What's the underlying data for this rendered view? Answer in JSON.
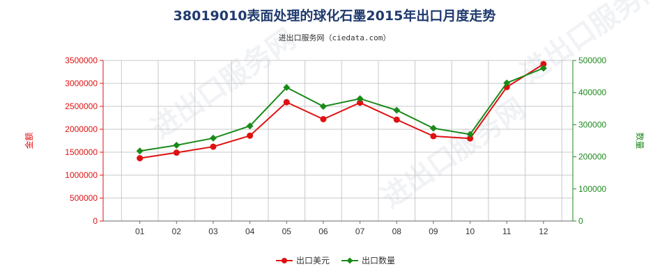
{
  "title": "38019010表面处理的球化石墨2015年出口月度走势",
  "subtitle": "进出口服务网（ciedata.com）",
  "watermark": "进出口服务网",
  "colors": {
    "left_axis": "#e01010",
    "right_axis": "#1a8a1a",
    "series_value": "#e01010",
    "series_qty": "#1a8a1a",
    "grid": "#c8c8c8",
    "title": "#1f3a6e"
  },
  "chart_data": {
    "type": "line",
    "categories": [
      "01",
      "02",
      "03",
      "04",
      "05",
      "06",
      "07",
      "08",
      "09",
      "10",
      "11",
      "12"
    ],
    "y_left": {
      "label": "金额",
      "range": [
        0,
        3500000
      ],
      "ticks": [
        0,
        500000,
        1000000,
        1500000,
        2000000,
        2500000,
        3000000,
        3500000
      ],
      "tick_labels": [
        "0",
        "500000",
        "1000000",
        "1500000",
        "2000000",
        "2500000",
        "3000000",
        "3500000"
      ]
    },
    "y_right": {
      "label": "数量",
      "range": [
        0,
        500000
      ],
      "ticks": [
        0,
        100000,
        200000,
        300000,
        400000,
        500000
      ],
      "tick_labels": [
        "0",
        "100000",
        "200000",
        "300000",
        "400000",
        "500000"
      ]
    },
    "grid": true,
    "legend_position": "bottom-center",
    "series": [
      {
        "name": "出口美元",
        "axis": "left",
        "marker": "circle",
        "values": [
          1370000,
          1490000,
          1620000,
          1860000,
          2590000,
          2220000,
          2580000,
          2210000,
          1850000,
          1800000,
          2920000,
          3420000
        ]
      },
      {
        "name": "出口数量",
        "axis": "right",
        "marker": "diamond",
        "values": [
          218000,
          236000,
          258000,
          296000,
          416000,
          357000,
          381000,
          345000,
          289000,
          270000,
          430000,
          476000
        ]
      }
    ]
  }
}
